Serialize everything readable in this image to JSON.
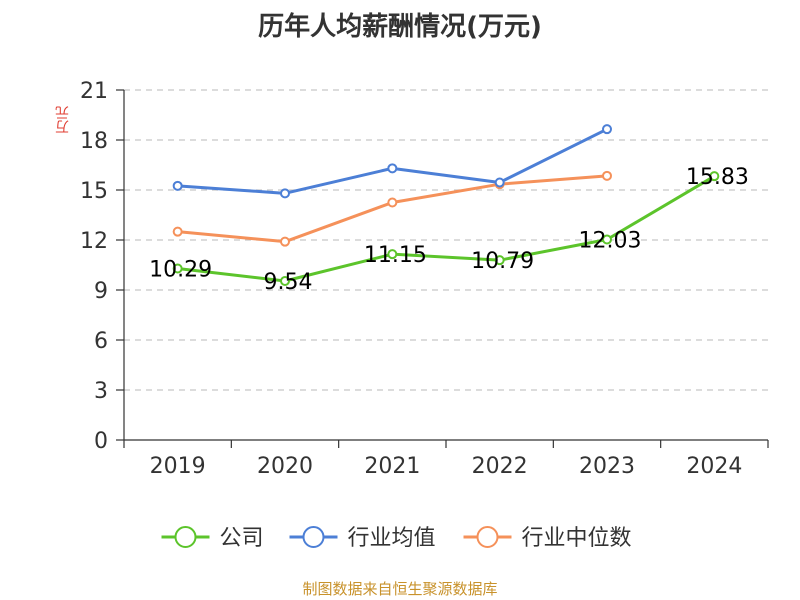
{
  "chart_data": {
    "type": "line",
    "title": "历年人均薪酬情况(万元)",
    "ylabel": "万元",
    "xlabel": "",
    "categories": [
      "2019",
      "2020",
      "2021",
      "2022",
      "2023",
      "2024"
    ],
    "ylim": [
      0,
      21
    ],
    "yticks": [
      0,
      3,
      6,
      9,
      12,
      15,
      18,
      21
    ],
    "grid": true,
    "legend_position": "bottom",
    "series": [
      {
        "name": "公司",
        "color": "#5cc42b",
        "values": [
          10.29,
          9.54,
          11.15,
          10.79,
          12.03,
          15.83
        ],
        "data_labels": [
          "10.29",
          "9.54",
          "11.15",
          "10.79",
          "12.03",
          "15.83"
        ]
      },
      {
        "name": "行业均值",
        "color": "#4c7fd6",
        "values": [
          15.25,
          14.8,
          16.3,
          15.45,
          18.65,
          null
        ]
      },
      {
        "name": "行业中位数",
        "color": "#f5915a",
        "values": [
          12.5,
          11.9,
          14.25,
          15.35,
          15.85,
          null
        ]
      }
    ]
  },
  "source_text": "制图数据来自恒生聚源数据库"
}
